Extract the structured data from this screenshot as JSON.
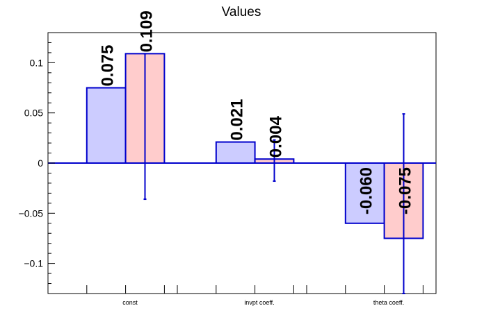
{
  "chart_data": {
    "type": "bar",
    "title": "Values",
    "xlabel": "",
    "ylabel": "",
    "categories": [
      "const",
      "invpt coeff.",
      "theta coeff."
    ],
    "ylim": [
      -0.13,
      0.13
    ],
    "y_ticks": [
      -0.1,
      -0.05,
      0,
      0.05,
      0.1
    ],
    "y_tick_labels": [
      "−0.1",
      "−0.05",
      "0",
      "0.05",
      "0.1"
    ],
    "grid": false,
    "legend": "none",
    "series": [
      {
        "values": [
          0.075,
          0.021,
          -0.06
        ],
        "value_labels": [
          "0.075",
          "0.021",
          "-0.060"
        ],
        "fill_color": "#ccccff",
        "edge_color": "#0000cc"
      },
      {
        "values": [
          0.109,
          0.004,
          -0.075
        ],
        "value_labels": [
          "0.109",
          "0.004",
          "-0.075"
        ],
        "error_low": [
          -0.036,
          -0.018,
          -0.13
        ],
        "error_high": [
          0.109,
          0.023,
          0.049
        ],
        "fill_color": "#ffcccc",
        "edge_color": "#0000cc"
      }
    ],
    "zero_line_color": "#0000cc",
    "axis_color": "#000000"
  }
}
